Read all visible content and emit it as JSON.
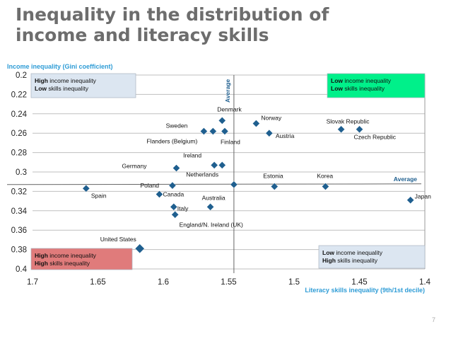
{
  "title_line1": "Inequality in the distribution of",
  "title_line2": "income and literacy skills",
  "page_number": "7",
  "chart_data": {
    "type": "scatter",
    "xlabel": "Literacy skills inequality (9th/1st decile)",
    "ylabel": "Income inequality (Gini coefficient)",
    "xlim": [
      1.7,
      1.4
    ],
    "ylim": [
      0.2,
      0.4
    ],
    "x_reversed": true,
    "y_reversed": true,
    "x_ticks": [
      "1.7",
      "1.65",
      "1.6",
      "1.55",
      "1.5",
      "1.45",
      "1.4"
    ],
    "y_ticks": [
      "0.2",
      "0.22",
      "0.24",
      "0.26",
      "0.28",
      "0.3",
      "0.32",
      "0.34",
      "0.36",
      "0.38",
      "0.4"
    ],
    "grid": "horizontal",
    "marker_color": "#1f5f8f",
    "average": {
      "x": 1.546,
      "y": 0.313,
      "label": "Average"
    },
    "points": [
      {
        "name": "Denmark",
        "x": 1.555,
        "y": 0.247
      },
      {
        "name": "Norway",
        "x": 1.529,
        "y": 0.25
      },
      {
        "name": "Austria",
        "x": 1.519,
        "y": 0.26
      },
      {
        "name": "Sweden",
        "x": 1.569,
        "y": 0.258
      },
      {
        "name": "Flanders (Belgium)",
        "x": 1.562,
        "y": 0.258
      },
      {
        "name": "Finland",
        "x": 1.553,
        "y": 0.258
      },
      {
        "name": "Slovak Republic",
        "x": 1.464,
        "y": 0.256
      },
      {
        "name": "Czech Republic",
        "x": 1.45,
        "y": 0.256
      },
      {
        "name": "Ireland",
        "x": 1.561,
        "y": 0.293
      },
      {
        "name": "Netherlands",
        "x": 1.555,
        "y": 0.293
      },
      {
        "name": "Germany",
        "x": 1.59,
        "y": 0.296
      },
      {
        "name": "Poland",
        "x": 1.593,
        "y": 0.314
      },
      {
        "name": "Canada",
        "x": 1.603,
        "y": 0.323
      },
      {
        "name": "Spain",
        "x": 1.659,
        "y": 0.317
      },
      {
        "name": "Estonia",
        "x": 1.515,
        "y": 0.315
      },
      {
        "name": "Korea",
        "x": 1.476,
        "y": 0.315
      },
      {
        "name": "Japan",
        "x": 1.411,
        "y": 0.329
      },
      {
        "name": "Australia",
        "x": 1.564,
        "y": 0.336
      },
      {
        "name": "Italy",
        "x": 1.592,
        "y": 0.336
      },
      {
        "name": "England/N. Ireland (UK)",
        "x": 1.591,
        "y": 0.344
      },
      {
        "name": "United States",
        "x": 1.618,
        "y": 0.379
      }
    ],
    "quadrant_boxes": [
      {
        "bold1": "High",
        "text1": " income inequality",
        "bold2": "Low",
        "text2": " skills inequality",
        "color": "#dce6f1"
      },
      {
        "bold1": "Low",
        "text1": " income inequality",
        "bold2": "Low",
        "text2": " skills inequality",
        "color": "#00f08a"
      },
      {
        "bold1": "High",
        "text1": " income inequality",
        "bold2": "High",
        "text2": " skills inequality",
        "color": "#e07b7b"
      },
      {
        "bold1": "Low",
        "text1": " income inequality",
        "bold2": "High",
        "text2": " skills inequality",
        "color": "#dce6f1"
      }
    ]
  }
}
